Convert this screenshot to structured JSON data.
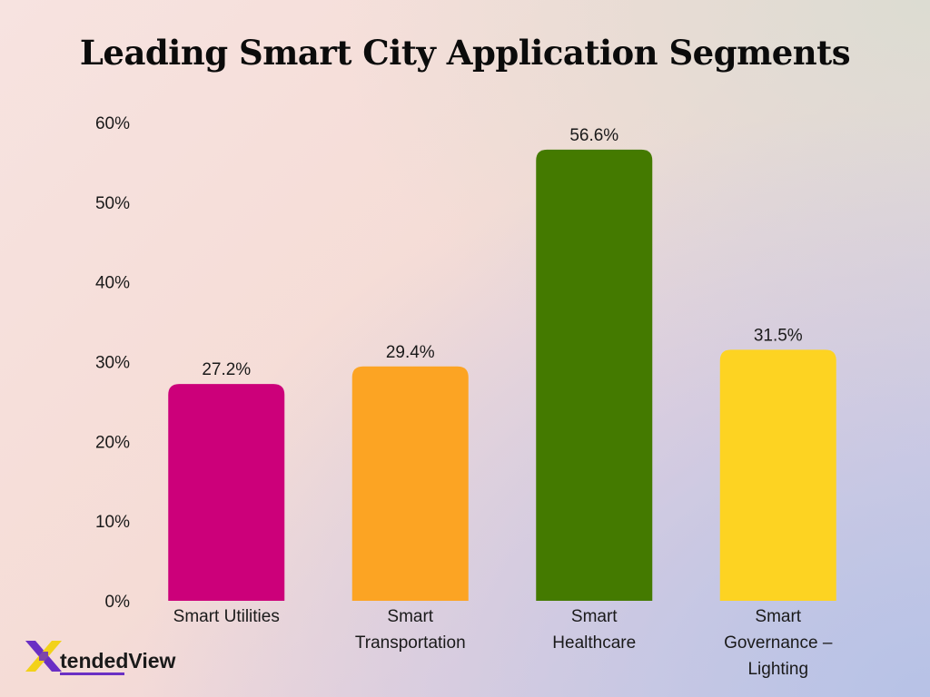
{
  "colors": {
    "bar_colors": [
      "#cc007a",
      "#fca423",
      "#447a00",
      "#fdd322"
    ],
    "logo_purple": "#6a2fc4",
    "logo_yellow": "#f2d21a"
  },
  "brand": {
    "name": "XtendedView",
    "text": "tendedView",
    "icon": "xtendedview-logo-x"
  },
  "chart_data": {
    "type": "bar",
    "title": "Leading Smart City Application Segments",
    "xlabel": "",
    "ylabel": "",
    "categories": [
      [
        "Smart Utilities"
      ],
      [
        "Smart",
        "Transportation"
      ],
      [
        "Smart",
        "Healthcare"
      ],
      [
        "Smart",
        "Governance –",
        "Lighting"
      ]
    ],
    "values": [
      27.2,
      29.4,
      56.6,
      31.5
    ],
    "value_labels": [
      "27.2%",
      "29.4%",
      "56.6%",
      "31.5%"
    ],
    "ylim": [
      0,
      60
    ],
    "yticks": [
      0,
      10,
      20,
      30,
      40,
      50,
      60
    ],
    "ytick_labels": [
      "0%",
      "10%",
      "20%",
      "30%",
      "40%",
      "50%",
      "60%"
    ],
    "grid": false,
    "legend": "none"
  }
}
